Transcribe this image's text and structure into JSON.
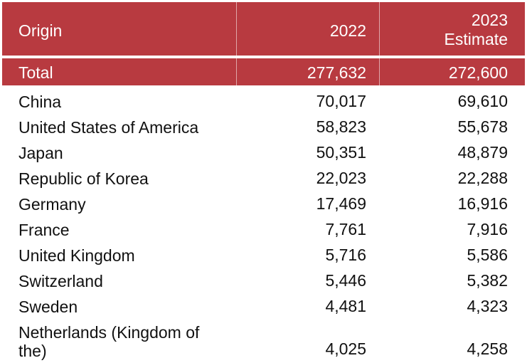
{
  "colors": {
    "header_bg": "#b83a40",
    "header_text": "#ffffff"
  },
  "header": {
    "origin": "Origin",
    "col_2022": "2022",
    "col_2023_line1": "2023",
    "col_2023_line2": "Estimate"
  },
  "total": {
    "label": "Total",
    "v2022": "277,632",
    "v2023": "272,600"
  },
  "rows": [
    {
      "origin": "China",
      "v2022": "70,017",
      "v2023": "69,610"
    },
    {
      "origin": "United States of America",
      "v2022": "58,823",
      "v2023": "55,678"
    },
    {
      "origin": "Japan",
      "v2022": "50,351",
      "v2023": "48,879"
    },
    {
      "origin": "Republic of Korea",
      "v2022": "22,023",
      "v2023": "22,288"
    },
    {
      "origin": "Germany",
      "v2022": "17,469",
      "v2023": "16,916"
    },
    {
      "origin": "France",
      "v2022": "7,761",
      "v2023": "7,916"
    },
    {
      "origin": "United Kingdom",
      "v2022": "5,716",
      "v2023": "5,586"
    },
    {
      "origin": "Switzerland",
      "v2022": "5,446",
      "v2023": "5,382"
    },
    {
      "origin": "Sweden",
      "v2022": "4,481",
      "v2023": "4,323"
    },
    {
      "origin": "Netherlands (Kingdom of the)",
      "v2022": "4,025",
      "v2023": "4,258"
    }
  ]
}
